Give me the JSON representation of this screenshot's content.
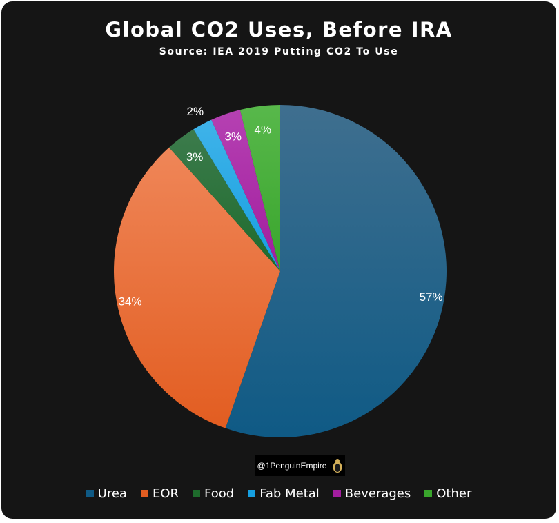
{
  "chart_data": {
    "type": "pie",
    "title": "Global CO2 Uses, Before IRA",
    "subtitle": "Source: IEA 2019 Putting CO2 To Use",
    "slices": [
      {
        "label": "Urea",
        "value": 57,
        "display": "57%",
        "color_top": "#3f6f8f",
        "color_bottom": "#0f5a85"
      },
      {
        "label": "EOR",
        "value": 34,
        "display": "34%",
        "color_top": "#ef8658",
        "color_bottom": "#e25d21"
      },
      {
        "label": "Food",
        "value": 3,
        "display": "3%",
        "color_top": "#3c7b4c",
        "color_bottom": "#1e6b2c"
      },
      {
        "label": "Fab Metal",
        "value": 2,
        "display": "2%",
        "color_top": "#3fb3e9",
        "color_bottom": "#169fe0"
      },
      {
        "label": "Beverages",
        "value": 3,
        "display": "3%",
        "color_top": "#b541b2",
        "color_bottom": "#a21d9e"
      },
      {
        "label": "Other",
        "value": 4,
        "display": "4%",
        "color_top": "#58b84b",
        "color_bottom": "#39a52c"
      }
    ],
    "legend_position": "bottom"
  },
  "watermark": {
    "text": "@1PenguinEmpire"
  },
  "colors": {
    "background": "#151515",
    "text": "#ffffff"
  }
}
